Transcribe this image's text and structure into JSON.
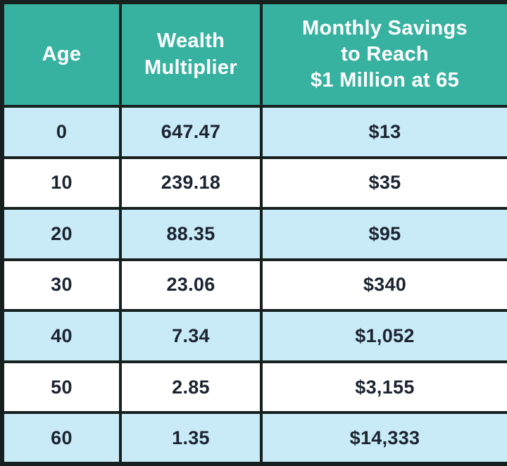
{
  "table": {
    "header": [
      {
        "label": "Age",
        "lines": [
          "Age"
        ]
      },
      {
        "label": "Wealth Multiplier",
        "lines": [
          "Wealth",
          "Multiplier"
        ]
      },
      {
        "label": "Monthly Savings to Reach $1 Million at 65",
        "lines": [
          "Monthly Savings",
          "to Reach",
          "$1 Million at 65"
        ]
      }
    ],
    "rows": [
      [
        "0",
        "647.47",
        "$13"
      ],
      [
        "10",
        "239.18",
        "$35"
      ],
      [
        "20",
        "88.35",
        "$95"
      ],
      [
        "30",
        "23.06",
        "$340"
      ],
      [
        "40",
        "7.34",
        "$1,052"
      ],
      [
        "50",
        "2.85",
        "$3,155"
      ],
      [
        "60",
        "1.35",
        "$14,333"
      ]
    ]
  },
  "colors": {
    "header_bg": "#38b2a0",
    "header_text": "#ffffff",
    "row_alt_bg": "#c9eaf7",
    "row_bg": "#ffffff",
    "border": "#16201f",
    "cell_text": "#1b2430"
  },
  "chart_data": {
    "type": "table",
    "title": "",
    "columns": [
      "Age",
      "Wealth Multiplier",
      "Monthly Savings to Reach $1 Million at 65"
    ],
    "rows": [
      [
        0,
        647.47,
        "$13"
      ],
      [
        10,
        239.18,
        "$35"
      ],
      [
        20,
        88.35,
        "$95"
      ],
      [
        30,
        23.06,
        "$340"
      ],
      [
        40,
        7.34,
        "$1,052"
      ],
      [
        50,
        2.85,
        "$3,155"
      ],
      [
        60,
        1.35,
        "$14,333"
      ]
    ],
    "layout": {
      "header_style": "teal background, white bold text",
      "row_striping": "odd rows light blue (#c9eaf7), even rows white",
      "grid": "thick dark borders on all cells"
    }
  }
}
